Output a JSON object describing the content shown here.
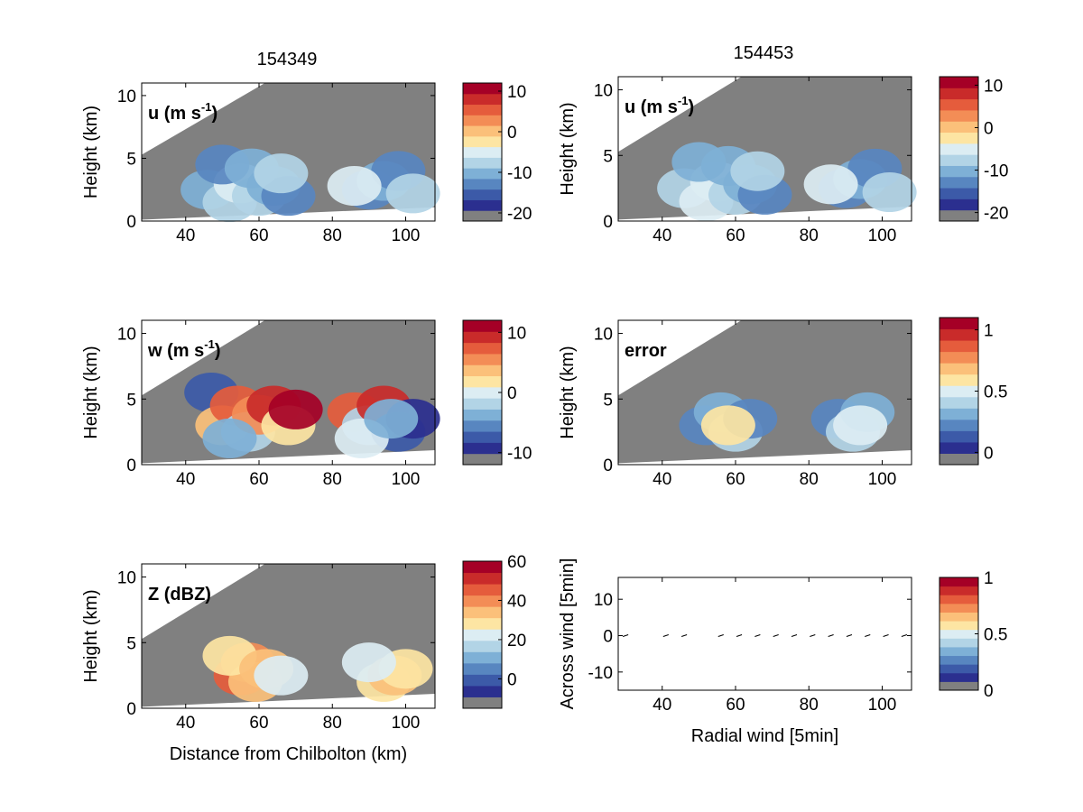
{
  "figure": {
    "col_titles": [
      "154349",
      "154453"
    ],
    "panels": [
      {
        "id": "u1",
        "kind": "field",
        "field": "u",
        "label": "u (m s",
        "label_sup": "-1",
        "label_close": ")",
        "ylabel": "Height (km)",
        "xlabel": "",
        "time": "154349"
      },
      {
        "id": "u2",
        "kind": "field",
        "field": "u",
        "label": "u (m s",
        "label_sup": "-1",
        "label_close": ")",
        "ylabel": "Height (km)",
        "xlabel": "",
        "time": "154453"
      },
      {
        "id": "w1",
        "kind": "field",
        "field": "w",
        "label": "w (m s",
        "label_sup": "-1",
        "label_close": ")",
        "ylabel": "Height (km)",
        "xlabel": "",
        "time": "154349"
      },
      {
        "id": "err",
        "kind": "field",
        "field": "error",
        "label": "error",
        "label_sup": "",
        "label_close": "",
        "ylabel": "Height (km)",
        "xlabel": "",
        "time": "154453"
      },
      {
        "id": "z1",
        "kind": "field",
        "field": "Z",
        "label": "Z (dBZ)",
        "label_sup": "",
        "label_close": "",
        "ylabel": "Height (km)",
        "xlabel": "Distance from Chilbolton (km)",
        "time": "154349"
      },
      {
        "id": "vec",
        "kind": "vector",
        "field": "",
        "label": "",
        "label_sup": "",
        "label_close": "",
        "ylabel": "Across wind [5min]",
        "xlabel": "Radial wind [5min]",
        "time": "154453"
      }
    ],
    "colorbars": [
      {
        "panel": "u1",
        "ticks": [
          "10",
          "0",
          "-10",
          "-20"
        ]
      },
      {
        "panel": "u2",
        "ticks": [
          "10",
          "0",
          "-10",
          "-20"
        ]
      },
      {
        "panel": "w1",
        "ticks": [
          "10",
          "0",
          "-10"
        ]
      },
      {
        "panel": "err",
        "ticks": [
          "1",
          "0.5",
          "0"
        ]
      },
      {
        "panel": "z1",
        "ticks": [
          "60",
          "40",
          "20",
          "0"
        ]
      },
      {
        "panel": "vec",
        "ticks": [
          "1",
          "0.5",
          "0"
        ]
      }
    ],
    "palette": [
      "#808080",
      "#2b2f8f",
      "#3c5aa8",
      "#5886c0",
      "#7eb0d6",
      "#b2d4e6",
      "#dcedf3",
      "#fde5a3",
      "#fbc07a",
      "#f38d56",
      "#e55c3c",
      "#c92b2a",
      "#a50026"
    ],
    "masked_color": "#808080"
  },
  "chart_data": [
    {
      "type": "heatmap",
      "title": "154349",
      "variable": "u (m s-1)",
      "xlabel": "",
      "ylabel": "Height (km)",
      "x_ticks": [
        40,
        60,
        80,
        100
      ],
      "y_ticks": [
        0,
        5,
        10
      ],
      "xlim": [
        28,
        108
      ],
      "ylim": [
        0,
        11
      ],
      "colorbar_ticks": [
        10,
        0,
        -10,
        -20
      ],
      "colorbar_range": [
        -22,
        12
      ],
      "cells": [
        [
          46,
          2.5,
          4
        ],
        [
          52,
          1.5,
          5
        ],
        [
          55,
          3.0,
          6
        ],
        [
          60,
          2.0,
          5
        ],
        [
          64,
          2.8,
          4
        ],
        [
          68,
          2.0,
          3
        ],
        [
          50,
          4.5,
          3
        ],
        [
          58,
          4.2,
          4
        ],
        [
          66,
          3.8,
          5
        ],
        [
          90,
          2.5,
          3
        ],
        [
          94,
          3.2,
          4
        ],
        [
          98,
          4.0,
          3
        ],
        [
          86,
          2.8,
          6
        ],
        [
          102,
          2.2,
          5
        ]
      ]
    },
    {
      "type": "heatmap",
      "title": "154453",
      "variable": "u (m s-1)",
      "xlabel": "",
      "ylabel": "Height (km)",
      "x_ticks": [
        40,
        60,
        80,
        100
      ],
      "y_ticks": [
        0,
        5,
        10
      ],
      "xlim": [
        28,
        108
      ],
      "ylim": [
        0,
        11
      ],
      "colorbar_ticks": [
        10,
        0,
        -10,
        -20
      ],
      "colorbar_range": [
        -22,
        12
      ],
      "cells": [
        [
          46,
          2.5,
          5
        ],
        [
          52,
          1.5,
          6
        ],
        [
          55,
          3.0,
          6
        ],
        [
          60,
          2.0,
          5
        ],
        [
          64,
          2.8,
          4
        ],
        [
          68,
          2.0,
          3
        ],
        [
          50,
          4.5,
          4
        ],
        [
          58,
          4.2,
          4
        ],
        [
          66,
          3.8,
          5
        ],
        [
          90,
          2.5,
          3
        ],
        [
          94,
          3.2,
          4
        ],
        [
          98,
          4.0,
          3
        ],
        [
          86,
          2.8,
          6
        ],
        [
          102,
          2.2,
          5
        ]
      ]
    },
    {
      "type": "heatmap",
      "title": "",
      "variable": "w (m s-1)",
      "xlabel": "",
      "ylabel": "Height (km)",
      "x_ticks": [
        40,
        60,
        80,
        100
      ],
      "y_ticks": [
        0,
        5,
        10
      ],
      "xlim": [
        28,
        108
      ],
      "ylim": [
        0,
        11
      ],
      "colorbar_ticks": [
        10,
        0,
        -10
      ],
      "colorbar_range": [
        -12,
        12
      ],
      "cells": [
        [
          47,
          5.5,
          2
        ],
        [
          50,
          3.0,
          8
        ],
        [
          54,
          4.5,
          10
        ],
        [
          57,
          2.5,
          5
        ],
        [
          60,
          3.8,
          9
        ],
        [
          64,
          4.5,
          11
        ],
        [
          68,
          3.0,
          7
        ],
        [
          70,
          4.2,
          12
        ],
        [
          52,
          2.0,
          4
        ],
        [
          86,
          4.0,
          10
        ],
        [
          90,
          3.0,
          5
        ],
        [
          94,
          4.5,
          11
        ],
        [
          98,
          2.5,
          2
        ],
        [
          102,
          3.5,
          1
        ],
        [
          88,
          2.0,
          6
        ],
        [
          96,
          3.5,
          4
        ]
      ]
    },
    {
      "type": "heatmap",
      "title": "",
      "variable": "error",
      "xlabel": "",
      "ylabel": "Height (km)",
      "x_ticks": [
        40,
        60,
        80,
        100
      ],
      "y_ticks": [
        0,
        5,
        10
      ],
      "xlim": [
        28,
        108
      ],
      "ylim": [
        0,
        11
      ],
      "colorbar_ticks": [
        1,
        0.5,
        0
      ],
      "colorbar_range": [
        -0.1,
        1.1
      ],
      "cells": [
        [
          52,
          3.0,
          3
        ],
        [
          56,
          4.0,
          4
        ],
        [
          60,
          2.5,
          5
        ],
        [
          64,
          3.5,
          3
        ],
        [
          58,
          3.0,
          7
        ],
        [
          88,
          3.5,
          3
        ],
        [
          92,
          2.5,
          5
        ],
        [
          96,
          4.0,
          4
        ],
        [
          94,
          3.0,
          6
        ]
      ]
    },
    {
      "type": "heatmap",
      "title": "",
      "variable": "Z (dBZ)",
      "xlabel": "Distance from Chilbolton (km)",
      "ylabel": "Height (km)",
      "x_ticks": [
        40,
        60,
        80,
        100
      ],
      "y_ticks": [
        0,
        5,
        10
      ],
      "xlim": [
        28,
        108
      ],
      "ylim": [
        0,
        11
      ],
      "colorbar_ticks": [
        60,
        40,
        20,
        0
      ],
      "colorbar_range": [
        -15,
        60
      ],
      "cells": [
        [
          55,
          2.5,
          10
        ],
        [
          57,
          3.5,
          9
        ],
        [
          59,
          2.0,
          8
        ],
        [
          52,
          4.0,
          7
        ],
        [
          62,
          3.0,
          8
        ],
        [
          66,
          2.5,
          6
        ],
        [
          94,
          2.0,
          7
        ],
        [
          97,
          2.5,
          8
        ],
        [
          100,
          3.0,
          7
        ],
        [
          90,
          3.5,
          6
        ]
      ]
    },
    {
      "type": "scatter",
      "title": "",
      "xlabel": "Radial wind [5min]",
      "ylabel": "Across wind [5min]",
      "x_ticks": [
        40,
        60,
        80,
        100
      ],
      "y_ticks": [
        -10,
        0,
        10
      ],
      "xlim": [
        28,
        108
      ],
      "ylim": [
        -15,
        16
      ],
      "colorbar_ticks": [
        1,
        0.5,
        0
      ],
      "x": [
        30,
        41,
        46,
        56,
        61,
        66,
        71,
        76,
        81,
        86,
        91,
        96,
        101,
        106
      ],
      "y": [
        0,
        0,
        0,
        0,
        0,
        0,
        0,
        0,
        0,
        0,
        0,
        0,
        0,
        0
      ]
    }
  ]
}
